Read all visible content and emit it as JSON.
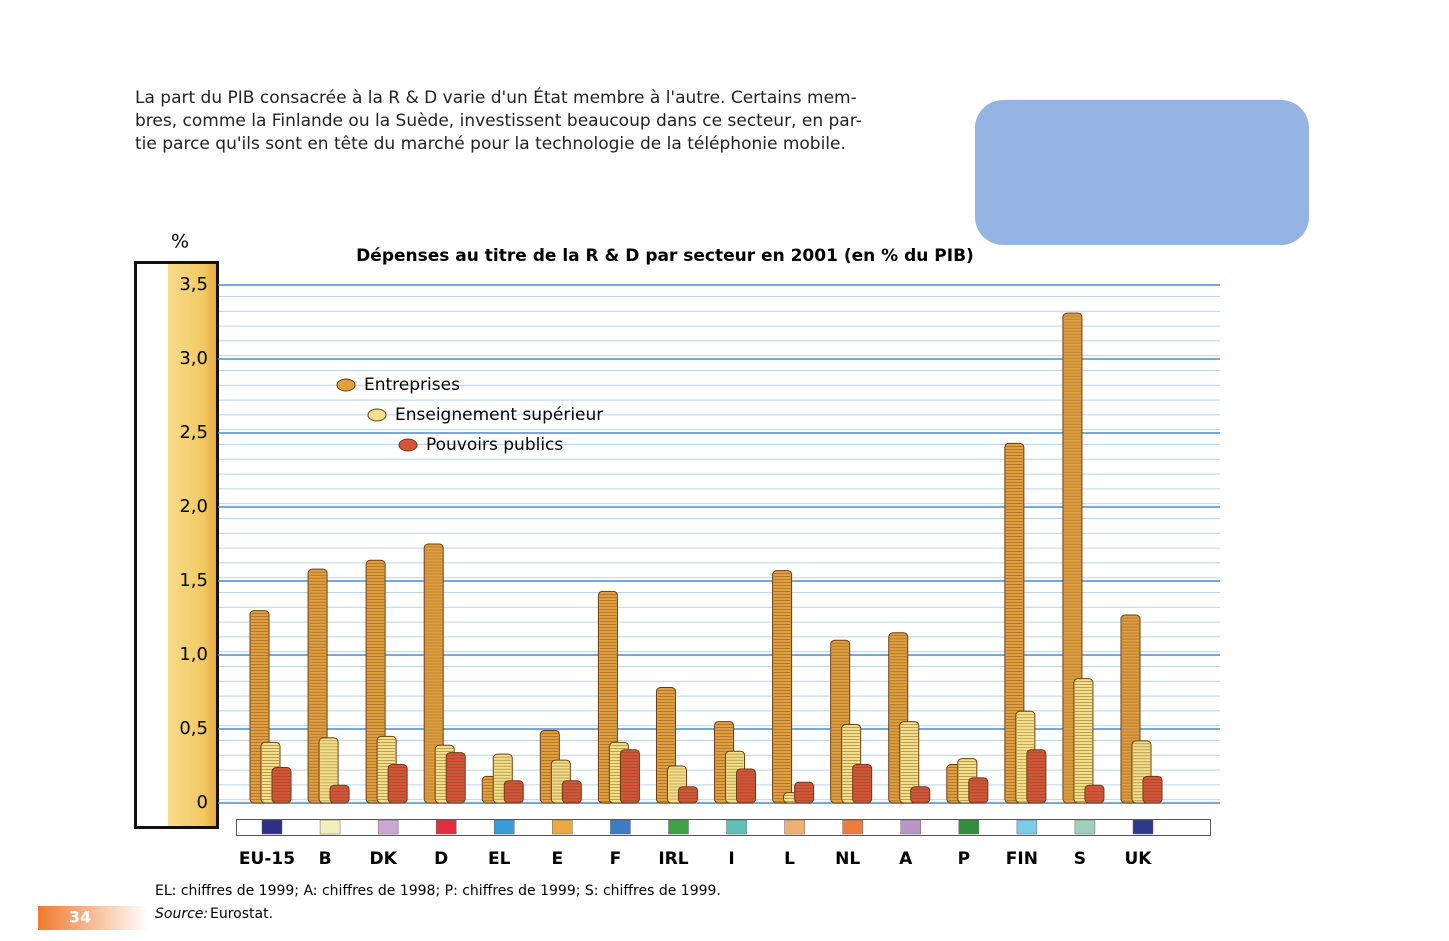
{
  "intro": [
    "La part du PIB consacrée à la R & D varie d'un État membre à l'autre. Certains mem-",
    "bres, comme la Finlande ou la Suède, investissent beaucoup dans ce secteur, en par-",
    "tie parce qu'ils sont en tête du marché pour la technologie de la téléphonie mobile."
  ],
  "note": "EL: chiffres de 1999; A: chiffres de 1998; P: chiffres de 1999; S: chiffres de 1999.",
  "source_label": "Source:",
  "source": "Eurostat.",
  "page_number": "34",
  "chart_data": {
    "type": "bar",
    "title": "Dépenses au titre de la R & D par secteur en 2001 (en % du PIB)",
    "y_label": "%",
    "categories": [
      "EU-15",
      "B",
      "DK",
      "D",
      "EL",
      "E",
      "F",
      "IRL",
      "I",
      "L",
      "NL",
      "A",
      "P",
      "FIN",
      "S",
      "UK"
    ],
    "flag_colors": [
      "#2b2f8a",
      "#f3eebb",
      "#c9a9d3",
      "#e03040",
      "#3a9bd8",
      "#eaa941",
      "#3d7bc4",
      "#3fa04a",
      "#5fc0b8",
      "#f0b070",
      "#ef7d3a",
      "#b896c8",
      "#2f8f3f",
      "#7ccbe9",
      "#9fd0b8",
      "#2d3a8c"
    ],
    "series": [
      {
        "name": "Entreprises",
        "color": "#e0a040",
        "values": [
          1.3,
          1.58,
          1.64,
          1.75,
          0.18,
          0.49,
          1.43,
          0.78,
          0.55,
          1.57,
          1.1,
          1.15,
          0.26,
          2.43,
          3.31,
          1.27
        ]
      },
      {
        "name": "Enseignement supérieur",
        "color": "#f2e08a",
        "values": [
          0.41,
          0.44,
          0.45,
          0.39,
          0.33,
          0.29,
          0.41,
          0.25,
          0.35,
          0.07,
          0.53,
          0.55,
          0.3,
          0.62,
          0.84,
          0.42
        ]
      },
      {
        "name": "Pouvoirs publics",
        "color": "#d4553a",
        "values": [
          0.24,
          0.12,
          0.26,
          0.34,
          0.15,
          0.15,
          0.36,
          0.11,
          0.23,
          0.14,
          0.26,
          0.11,
          0.17,
          0.36,
          0.12,
          0.18
        ]
      }
    ],
    "ylim": [
      0,
      3.5
    ],
    "yticks": [
      0,
      {
        "value": 0.5,
        "label": "0,5"
      },
      {
        "value": 1,
        "label": "1,0"
      },
      {
        "value": 1.5,
        "label": "1,5"
      },
      {
        "value": 2,
        "label": "2,0"
      },
      {
        "value": 2.5,
        "label": "2,5"
      },
      {
        "value": 3,
        "label": "3,0"
      },
      {
        "value": 3.5,
        "label": "3,5"
      }
    ],
    "grid": true
  }
}
